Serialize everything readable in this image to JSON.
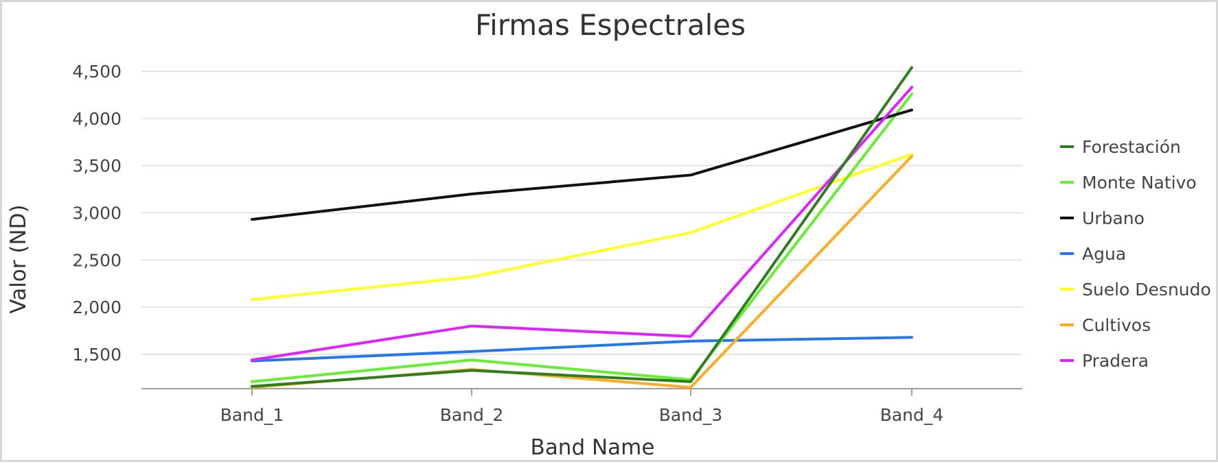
{
  "chart_data": {
    "type": "line",
    "title": "Firmas Espectrales",
    "xlabel": "Band Name",
    "ylabel": "Valor (ND)",
    "categories": [
      "Band_1",
      "Band_2",
      "Band_3",
      "Band_4"
    ],
    "ylim": [
      1150,
      4650
    ],
    "yticks": [
      1500,
      2000,
      2500,
      3000,
      3500,
      4000,
      4500
    ],
    "ytick_labels": [
      "1,500",
      "2,000",
      "2,500",
      "3,000",
      "3,500",
      "4,000",
      "4,500"
    ],
    "grid": true,
    "legend_position": "right",
    "series": [
      {
        "name": "Forestación",
        "color": "#2e7d1e",
        "values": [
          1160,
          1330,
          1210,
          4540
        ]
      },
      {
        "name": "Monte Nativo",
        "color": "#66ee33",
        "values": [
          1210,
          1440,
          1230,
          4260
        ]
      },
      {
        "name": "Urbano",
        "color": "#111111",
        "values": [
          2930,
          3200,
          3400,
          4090
        ]
      },
      {
        "name": "Agua",
        "color": "#2277ee",
        "values": [
          1430,
          1530,
          1640,
          1680
        ]
      },
      {
        "name": "Suelo Desnudo",
        "color": "#ffff22",
        "values": [
          2080,
          2320,
          2790,
          3620
        ]
      },
      {
        "name": "Cultivos",
        "color": "#ffaa22",
        "values": [
          1150,
          1340,
          1150,
          3600
        ]
      },
      {
        "name": "Pradera",
        "color": "#dd22ff",
        "values": [
          1440,
          1800,
          1690,
          4330
        ]
      }
    ]
  }
}
